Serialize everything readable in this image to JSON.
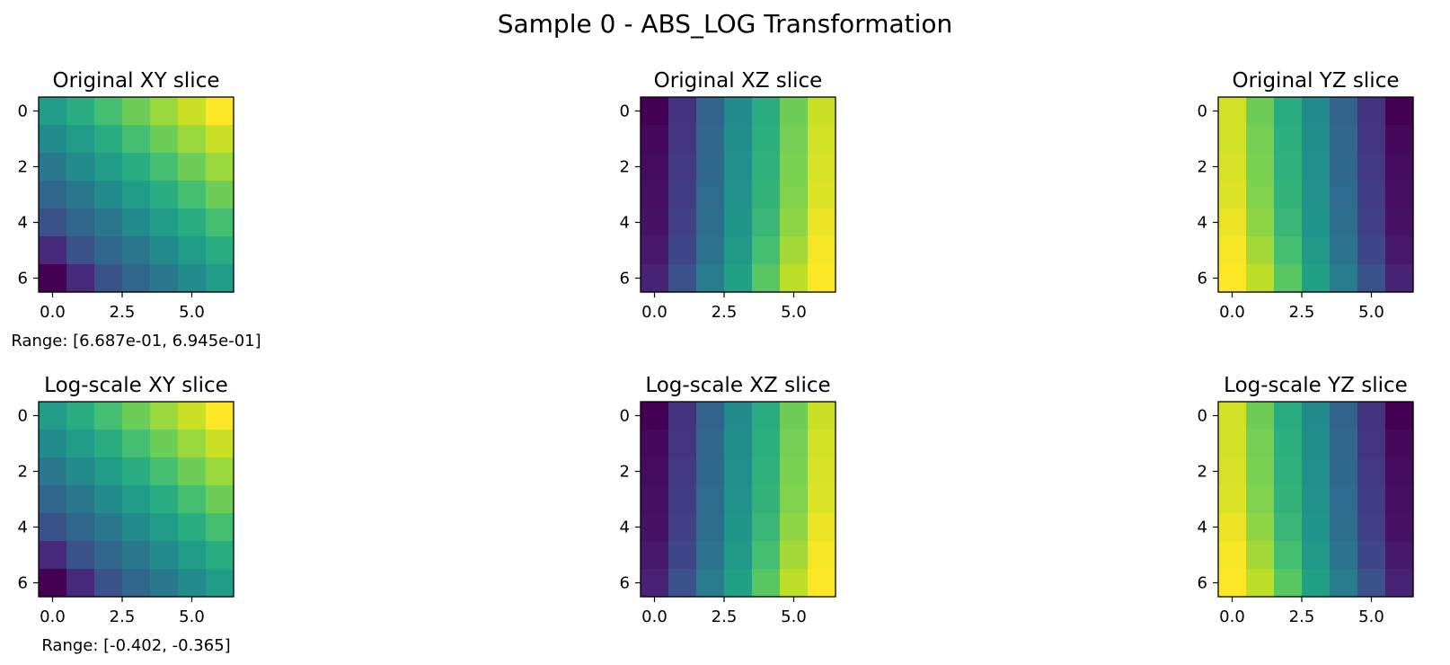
{
  "figure": {
    "title": "Sample 0 - ABS_LOG Transformation"
  },
  "colormap": "viridis",
  "chart_data": [
    {
      "type": "heatmap",
      "title": "Original XY slice",
      "xticks": [
        "0.0",
        "2.5",
        "5.0"
      ],
      "yticks": [
        "0",
        "2",
        "4",
        "6"
      ],
      "xlim": [
        -0.5,
        6.5
      ],
      "ylim": [
        6.5,
        -0.5
      ],
      "annotation": "Range: [6.687e-01, 6.945e-01]",
      "values": [
        [
          0.55,
          0.62,
          0.7,
          0.78,
          0.85,
          0.92,
          1.0
        ],
        [
          0.48,
          0.55,
          0.62,
          0.7,
          0.78,
          0.85,
          0.92
        ],
        [
          0.4,
          0.48,
          0.55,
          0.62,
          0.7,
          0.78,
          0.85
        ],
        [
          0.33,
          0.4,
          0.48,
          0.55,
          0.62,
          0.7,
          0.78
        ],
        [
          0.25,
          0.33,
          0.4,
          0.48,
          0.55,
          0.62,
          0.7
        ],
        [
          0.12,
          0.25,
          0.33,
          0.4,
          0.48,
          0.55,
          0.62
        ],
        [
          0.0,
          0.12,
          0.25,
          0.33,
          0.4,
          0.48,
          0.55
        ]
      ]
    },
    {
      "type": "heatmap",
      "title": "Original XZ slice",
      "xticks": [
        "0.0",
        "2.5",
        "5.0"
      ],
      "yticks": [
        "0",
        "2",
        "4",
        "6"
      ],
      "xlim": [
        -0.5,
        6.5
      ],
      "ylim": [
        6.5,
        -0.5
      ],
      "annotation": "",
      "values": [
        [
          0.0,
          0.15,
          0.32,
          0.48,
          0.62,
          0.78,
          0.92
        ],
        [
          0.02,
          0.16,
          0.33,
          0.49,
          0.63,
          0.79,
          0.93
        ],
        [
          0.03,
          0.17,
          0.34,
          0.5,
          0.64,
          0.8,
          0.94
        ],
        [
          0.04,
          0.18,
          0.35,
          0.51,
          0.65,
          0.81,
          0.95
        ],
        [
          0.05,
          0.19,
          0.36,
          0.52,
          0.67,
          0.83,
          0.97
        ],
        [
          0.07,
          0.21,
          0.38,
          0.54,
          0.7,
          0.86,
          0.99
        ],
        [
          0.1,
          0.25,
          0.42,
          0.57,
          0.74,
          0.9,
          1.0
        ]
      ]
    },
    {
      "type": "heatmap",
      "title": "Original YZ slice",
      "xticks": [
        "0.0",
        "2.5",
        "5.0"
      ],
      "yticks": [
        "0",
        "2",
        "4",
        "6"
      ],
      "xlim": [
        -0.5,
        6.5
      ],
      "ylim": [
        6.5,
        -0.5
      ],
      "annotation": "",
      "values": [
        [
          0.93,
          0.78,
          0.62,
          0.48,
          0.32,
          0.15,
          0.0
        ],
        [
          0.93,
          0.79,
          0.63,
          0.49,
          0.33,
          0.16,
          0.02
        ],
        [
          0.94,
          0.8,
          0.64,
          0.5,
          0.34,
          0.17,
          0.03
        ],
        [
          0.95,
          0.81,
          0.65,
          0.51,
          0.35,
          0.18,
          0.04
        ],
        [
          0.97,
          0.83,
          0.67,
          0.52,
          0.36,
          0.19,
          0.05
        ],
        [
          0.99,
          0.86,
          0.7,
          0.54,
          0.38,
          0.21,
          0.07
        ],
        [
          1.0,
          0.9,
          0.74,
          0.57,
          0.42,
          0.25,
          0.1
        ]
      ]
    },
    {
      "type": "heatmap",
      "title": "Log-scale XY slice",
      "xticks": [
        "0.0",
        "2.5",
        "5.0"
      ],
      "yticks": [
        "0",
        "2",
        "4",
        "6"
      ],
      "xlim": [
        -0.5,
        6.5
      ],
      "ylim": [
        6.5,
        -0.5
      ],
      "annotation": "Range: [-0.402, -0.365]",
      "values": [
        [
          0.55,
          0.62,
          0.7,
          0.78,
          0.85,
          0.92,
          1.0
        ],
        [
          0.48,
          0.55,
          0.62,
          0.7,
          0.78,
          0.85,
          0.92
        ],
        [
          0.4,
          0.48,
          0.55,
          0.62,
          0.7,
          0.78,
          0.85
        ],
        [
          0.33,
          0.4,
          0.48,
          0.55,
          0.62,
          0.7,
          0.78
        ],
        [
          0.25,
          0.33,
          0.4,
          0.48,
          0.55,
          0.62,
          0.7
        ],
        [
          0.12,
          0.25,
          0.33,
          0.4,
          0.48,
          0.55,
          0.62
        ],
        [
          0.0,
          0.12,
          0.25,
          0.33,
          0.4,
          0.48,
          0.55
        ]
      ]
    },
    {
      "type": "heatmap",
      "title": "Log-scale XZ slice",
      "xticks": [
        "0.0",
        "2.5",
        "5.0"
      ],
      "yticks": [
        "0",
        "2",
        "4",
        "6"
      ],
      "xlim": [
        -0.5,
        6.5
      ],
      "ylim": [
        6.5,
        -0.5
      ],
      "annotation": "",
      "values": [
        [
          0.0,
          0.15,
          0.32,
          0.48,
          0.62,
          0.78,
          0.92
        ],
        [
          0.02,
          0.16,
          0.33,
          0.49,
          0.63,
          0.79,
          0.93
        ],
        [
          0.03,
          0.17,
          0.34,
          0.5,
          0.64,
          0.8,
          0.94
        ],
        [
          0.04,
          0.18,
          0.35,
          0.51,
          0.65,
          0.81,
          0.95
        ],
        [
          0.05,
          0.19,
          0.36,
          0.52,
          0.67,
          0.83,
          0.97
        ],
        [
          0.07,
          0.21,
          0.38,
          0.54,
          0.7,
          0.86,
          0.99
        ],
        [
          0.1,
          0.25,
          0.42,
          0.57,
          0.74,
          0.9,
          1.0
        ]
      ]
    },
    {
      "type": "heatmap",
      "title": "Log-scale YZ slice",
      "xticks": [
        "0.0",
        "2.5",
        "5.0"
      ],
      "yticks": [
        "0",
        "2",
        "4",
        "6"
      ],
      "xlim": [
        -0.5,
        6.5
      ],
      "ylim": [
        6.5,
        -0.5
      ],
      "annotation": "",
      "values": [
        [
          0.93,
          0.78,
          0.62,
          0.48,
          0.32,
          0.15,
          0.0
        ],
        [
          0.93,
          0.79,
          0.63,
          0.49,
          0.33,
          0.16,
          0.02
        ],
        [
          0.94,
          0.8,
          0.64,
          0.5,
          0.34,
          0.17,
          0.03
        ],
        [
          0.95,
          0.81,
          0.65,
          0.51,
          0.35,
          0.18,
          0.04
        ],
        [
          0.97,
          0.83,
          0.67,
          0.52,
          0.36,
          0.19,
          0.05
        ],
        [
          0.99,
          0.86,
          0.7,
          0.54,
          0.38,
          0.21,
          0.07
        ],
        [
          1.0,
          0.9,
          0.74,
          0.57,
          0.42,
          0.25,
          0.1
        ]
      ]
    }
  ]
}
